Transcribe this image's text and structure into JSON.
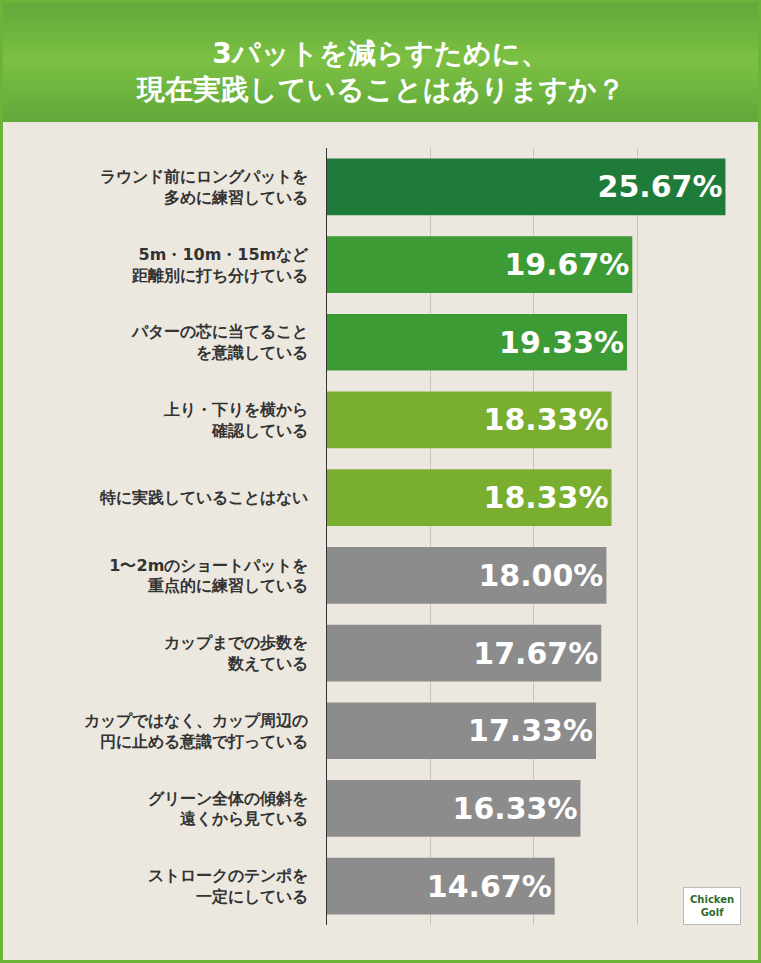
{
  "chart_data": {
    "type": "bar",
    "title": "3パットを減らすために、\n現在実践していることはありますか？",
    "orientation": "horizontal",
    "categories": [
      "ラウンド前にロングパットを\n多めに練習している",
      "5m・10m・15mなど\n距離別に打ち分けている",
      "パターの芯に当てること\nを意識している",
      "上り・下りを横から\n確認している",
      "特に実践していることはない",
      "1〜2mのショートパットを\n重点的に練習している",
      "カップまでの歩数を\n数えている",
      "カップではなく、カップ周辺の\n円に止める意識で打っている",
      "グリーン全体の傾斜を\n遠くから見ている",
      "ストロークのテンポを\n一定にしている"
    ],
    "values": [
      25.67,
      19.67,
      19.33,
      18.33,
      18.33,
      18.0,
      17.67,
      17.33,
      16.33,
      14.67
    ],
    "value_labels": [
      "25.67%",
      "19.67%",
      "19.33%",
      "18.33%",
      "18.33%",
      "18.00%",
      "17.67%",
      "17.33%",
      "16.33%",
      "14.67%"
    ],
    "colors": [
      "#1e7b3a",
      "#3d9b35",
      "#3d9b35",
      "#7aae2f",
      "#7aae2f",
      "#8c8c8c",
      "#8c8c8c",
      "#8c8c8c",
      "#8c8c8c",
      "#8c8c8c"
    ],
    "xlim": [
      0,
      26.67
    ],
    "xticks": [
      0,
      6.67,
      13.33,
      20,
      26.67
    ],
    "grid": true,
    "data_labels": true,
    "tick_labels": "y",
    "annotations": [
      "Chicken\nGolf"
    ]
  }
}
